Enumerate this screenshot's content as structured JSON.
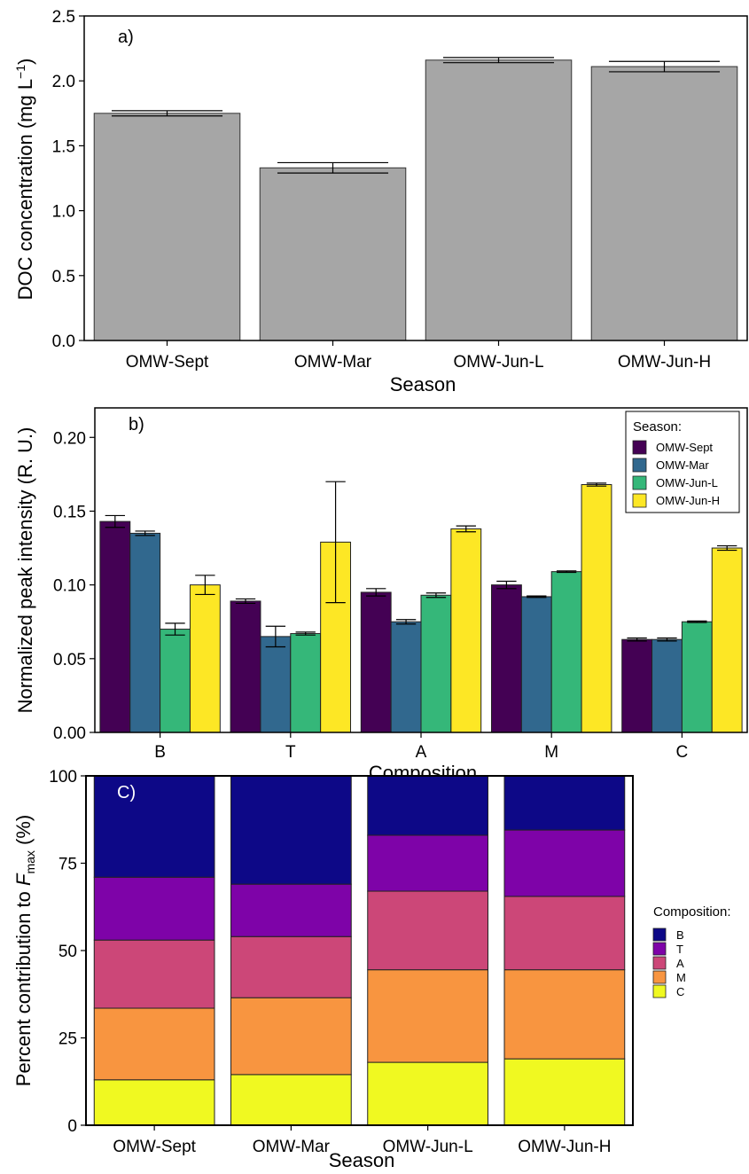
{
  "chart_data": [
    {
      "type": "bar",
      "panel_label": "a)",
      "xlabel": "Season",
      "ylabel": "DOC concentration (mg L",
      "ylabel_sup": "−1",
      "ylabel_close": ")",
      "categories": [
        "OMW-Sept",
        "OMW-Mar",
        "OMW-Jun-L",
        "OMW-Jun-H"
      ],
      "values": [
        1.75,
        1.33,
        2.16,
        2.11
      ],
      "errors": [
        0.02,
        0.04,
        0.02,
        0.04
      ],
      "yticks": [
        "0.0",
        "0.5",
        "1.0",
        "1.5",
        "2.0",
        "2.5"
      ],
      "ylim": [
        0,
        2.5
      ],
      "bar_color": "#a6a6a6",
      "grid": false
    },
    {
      "type": "bar",
      "panel_label": "b)",
      "xlabel": "Composition",
      "ylabel": "Normalized peak intensity (R. U.)",
      "categories": [
        "B",
        "T",
        "A",
        "M",
        "C"
      ],
      "series": [
        {
          "name": "OMW-Sept",
          "color": "#440154",
          "values": [
            0.143,
            0.089,
            0.095,
            0.1,
            0.063
          ],
          "errors": [
            0.004,
            0.0015,
            0.0025,
            0.0025,
            0.001
          ]
        },
        {
          "name": "OMW-Mar",
          "color": "#31688e",
          "values": [
            0.135,
            0.065,
            0.075,
            0.092,
            0.063
          ],
          "errors": [
            0.0015,
            0.007,
            0.0015,
            0.0005,
            0.001
          ]
        },
        {
          "name": "OMW-Jun-L",
          "color": "#35b779",
          "values": [
            0.07,
            0.067,
            0.093,
            0.109,
            0.075
          ],
          "errors": [
            0.004,
            0.001,
            0.0015,
            0.0005,
            0.0005
          ]
        },
        {
          "name": "OMW-Jun-H",
          "color": "#fde725",
          "values": [
            0.1,
            0.129,
            0.138,
            0.168,
            0.125
          ],
          "errors": [
            0.0065,
            0.041,
            0.002,
            0.001,
            0.0015
          ]
        }
      ],
      "yticks": [
        "0.00",
        "0.05",
        "0.10",
        "0.15",
        "0.20"
      ],
      "ylim": [
        0,
        0.22
      ],
      "legend_title": "Season:",
      "legend_position": "top-right",
      "grid": false
    },
    {
      "type": "bar",
      "stacked": true,
      "panel_label": "C)",
      "xlabel": "Season",
      "ylabel_prefix": "Percent contribution to ",
      "ylabel_italic": "F",
      "ylabel_sub": "max",
      "ylabel_suffix": " (%)",
      "categories": [
        "OMW-Sept",
        "OMW-Mar",
        "OMW-Jun-L",
        "OMW-Jun-H"
      ],
      "series": [
        {
          "name": "C",
          "color": "#f0f921",
          "values": [
            13,
            14.5,
            18,
            19
          ]
        },
        {
          "name": "M",
          "color": "#f89540",
          "values": [
            20.5,
            22,
            26.5,
            25.5
          ]
        },
        {
          "name": "A",
          "color": "#cc4778",
          "values": [
            19.5,
            17.5,
            22.5,
            21
          ]
        },
        {
          "name": "T",
          "color": "#7e03a8",
          "values": [
            18,
            15,
            16,
            19
          ]
        },
        {
          "name": "B",
          "color": "#0d0887",
          "values": [
            29,
            31,
            17,
            15.5
          ]
        }
      ],
      "legend_order": [
        "B",
        "T",
        "A",
        "M",
        "C"
      ],
      "yticks": [
        "0",
        "25",
        "50",
        "75",
        "100"
      ],
      "ylim": [
        0,
        100
      ],
      "legend_title": "Composition:",
      "legend_position": "right",
      "grid": false
    }
  ]
}
